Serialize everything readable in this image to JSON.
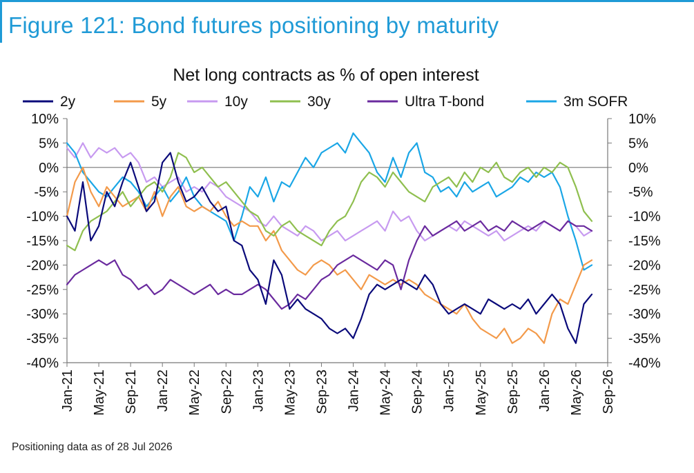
{
  "figure_title": "Figure 121: Bond futures positioning by maturity",
  "footnote": "Positioning data as of 28 Jul 2026",
  "colors": {
    "accent": "#1f9ad6",
    "2y": "#0a0a7a",
    "5y": "#f39a4a",
    "10y": "#c79af0",
    "30y": "#8fbf4f",
    "ultra": "#6a2a9e",
    "sofr": "#1aa6e6"
  },
  "chart_data": {
    "type": "line",
    "title": "Net long contracts as % of open interest",
    "ylim": [
      -40,
      10
    ],
    "yticks": [
      "10%",
      "5%",
      "0%",
      "-5%",
      "-10%",
      "-15%",
      "-20%",
      "-25%",
      "-30%",
      "-35%",
      "-40%"
    ],
    "ytick_values": [
      10,
      5,
      0,
      -5,
      -10,
      -15,
      -20,
      -25,
      -30,
      -35,
      -40
    ],
    "xticks": [
      "Jan-21",
      "May-21",
      "Sep-21",
      "Jan-22",
      "May-22",
      "Sep-22",
      "Jan-23",
      "May-23",
      "Sep-23",
      "Jan-24",
      "May-24",
      "Sep-24",
      "Jan-25",
      "May-25",
      "Sep-25",
      "Jan-26",
      "May-26",
      "Sep-26"
    ],
    "xlim": [
      "Jan-21",
      "Sep-26"
    ],
    "legend_position": "top",
    "grid": false,
    "series": [
      {
        "name": "2y",
        "key": "2y",
        "dates": [
          "Jan-21",
          "Feb-21",
          "Mar-21",
          "Apr-21",
          "May-21",
          "Jun-21",
          "Jul-21",
          "Aug-21",
          "Sep-21",
          "Oct-21",
          "Nov-21",
          "Dec-21",
          "Jan-22",
          "Feb-22",
          "Mar-22",
          "Apr-22",
          "May-22",
          "Jun-22",
          "Jul-22",
          "Aug-22",
          "Sep-22",
          "Oct-22",
          "Nov-22",
          "Dec-22",
          "Jan-23",
          "Feb-23",
          "Mar-23",
          "Apr-23",
          "May-23",
          "Jun-23",
          "Jul-23",
          "Aug-23",
          "Sep-23",
          "Oct-23",
          "Nov-23",
          "Dec-23",
          "Jan-24",
          "Feb-24",
          "Mar-24",
          "Apr-24",
          "May-24",
          "Jun-24",
          "Jul-24",
          "Aug-24",
          "Sep-24",
          "Oct-24",
          "Nov-24",
          "Dec-24",
          "Jan-25",
          "Feb-25",
          "Mar-25",
          "Apr-25",
          "May-25",
          "Jun-25",
          "Jul-25",
          "Aug-25",
          "Sep-25",
          "Oct-25",
          "Nov-25",
          "Dec-25",
          "Jan-26",
          "Feb-26",
          "Mar-26",
          "Apr-26",
          "May-26",
          "Jun-26",
          "Jul-26"
        ],
        "values": [
          -10,
          -13,
          -3,
          -15,
          -12,
          -5,
          -8,
          -3,
          1,
          -4,
          -9,
          -7,
          1,
          3,
          -3,
          -7,
          -6,
          -4,
          -7,
          -9,
          -8,
          -15,
          -16,
          -21,
          -23,
          -28,
          -19,
          -22,
          -29,
          -27,
          -29,
          -30,
          -31,
          -33,
          -34,
          -33,
          -35,
          -31,
          -26,
          -24,
          -25,
          -24,
          -23,
          -24,
          -25,
          -22,
          -24,
          -28,
          -30,
          -29,
          -28,
          -29,
          -30,
          -27,
          -28,
          -29,
          -28,
          -29,
          -27,
          -30,
          -28,
          -26,
          -28,
          -33,
          -36,
          -28,
          -26
        ]
      },
      {
        "name": "5y",
        "key": "5y",
        "dates": [
          "Jan-21",
          "Feb-21",
          "Mar-21",
          "Apr-21",
          "May-21",
          "Jun-21",
          "Jul-21",
          "Aug-21",
          "Sep-21",
          "Oct-21",
          "Nov-21",
          "Dec-21",
          "Jan-22",
          "Feb-22",
          "Mar-22",
          "Apr-22",
          "May-22",
          "Jun-22",
          "Jul-22",
          "Aug-22",
          "Sep-22",
          "Oct-22",
          "Nov-22",
          "Dec-22",
          "Jan-23",
          "Feb-23",
          "Mar-23",
          "Apr-23",
          "May-23",
          "Jun-23",
          "Jul-23",
          "Aug-23",
          "Sep-23",
          "Oct-23",
          "Nov-23",
          "Dec-23",
          "Jan-24",
          "Feb-24",
          "Mar-24",
          "Apr-24",
          "May-24",
          "Jun-24",
          "Jul-24",
          "Aug-24",
          "Sep-24",
          "Oct-24",
          "Nov-24",
          "Dec-24",
          "Jan-25",
          "Feb-25",
          "Mar-25",
          "Apr-25",
          "May-25",
          "Jun-25",
          "Jul-25",
          "Aug-25",
          "Sep-25",
          "Oct-25",
          "Nov-25",
          "Dec-25",
          "Jan-26",
          "Feb-26",
          "Mar-26",
          "Apr-26",
          "May-26",
          "Jun-26",
          "Jul-26"
        ],
        "values": [
          -10,
          -3,
          0,
          -5,
          -8,
          -4,
          -6,
          -8,
          -7,
          -6,
          -9,
          -5,
          -10,
          -6,
          -4,
          -8,
          -9,
          -8,
          -9,
          -7,
          -10,
          -12,
          -11,
          -12,
          -12,
          -15,
          -13,
          -17,
          -19,
          -21,
          -22,
          -20,
          -19,
          -20,
          -22,
          -21,
          -23,
          -25,
          -22,
          -23,
          -24,
          -23,
          -24,
          -23,
          -24,
          -26,
          -27,
          -28,
          -29,
          -30,
          -28,
          -31,
          -33,
          -34,
          -35,
          -33,
          -36,
          -35,
          -33,
          -34,
          -36,
          -30,
          -27,
          -28,
          -24,
          -20,
          -19
        ]
      },
      {
        "name": "10y",
        "key": "10y",
        "dates": [
          "Jan-21",
          "Feb-21",
          "Mar-21",
          "Apr-21",
          "May-21",
          "Jun-21",
          "Jul-21",
          "Aug-21",
          "Sep-21",
          "Oct-21",
          "Nov-21",
          "Dec-21",
          "Jan-22",
          "Feb-22",
          "Mar-22",
          "Apr-22",
          "May-22",
          "Jun-22",
          "Jul-22",
          "Aug-22",
          "Sep-22",
          "Oct-22",
          "Nov-22",
          "Dec-22",
          "Jan-23",
          "Feb-23",
          "Mar-23",
          "Apr-23",
          "May-23",
          "Jun-23",
          "Jul-23",
          "Aug-23",
          "Sep-23",
          "Oct-23",
          "Nov-23",
          "Dec-23",
          "Jan-24",
          "Feb-24",
          "Mar-24",
          "Apr-24",
          "May-24",
          "Jun-24",
          "Jul-24",
          "Aug-24",
          "Sep-24",
          "Oct-24",
          "Nov-24",
          "Dec-24",
          "Jan-25",
          "Feb-25",
          "Mar-25",
          "Apr-25",
          "May-25",
          "Jun-25",
          "Jul-25",
          "Aug-25",
          "Sep-25",
          "Oct-25",
          "Nov-25",
          "Dec-25",
          "Jan-26",
          "Feb-26",
          "Mar-26",
          "Apr-26",
          "May-26",
          "Jun-26",
          "Jul-26"
        ],
        "values": [
          4,
          2,
          5,
          2,
          4,
          3,
          4,
          2,
          3,
          1,
          -3,
          -2,
          -4,
          -3,
          -2,
          -5,
          -4,
          -5,
          -3,
          -4,
          -6,
          -7,
          -8,
          -9,
          -11,
          -12,
          -10,
          -12,
          -13,
          -14,
          -12,
          -13,
          -15,
          -14,
          -13,
          -15,
          -14,
          -13,
          -12,
          -11,
          -13,
          -9,
          -11,
          -10,
          -13,
          -15,
          -14,
          -13,
          -12,
          -13,
          -11,
          -12,
          -13,
          -14,
          -13,
          -15,
          -14,
          -13,
          -12,
          -13,
          -11,
          -12,
          -13,
          -11,
          -12,
          -14,
          -13
        ]
      },
      {
        "name": "30y",
        "key": "30y",
        "dates": [
          "Jan-21",
          "Feb-21",
          "Mar-21",
          "Apr-21",
          "May-21",
          "Jun-21",
          "Jul-21",
          "Aug-21",
          "Sep-21",
          "Oct-21",
          "Nov-21",
          "Dec-21",
          "Jan-22",
          "Feb-22",
          "Mar-22",
          "Apr-22",
          "May-22",
          "Jun-22",
          "Jul-22",
          "Aug-22",
          "Sep-22",
          "Oct-22",
          "Nov-22",
          "Dec-22",
          "Jan-23",
          "Feb-23",
          "Mar-23",
          "Apr-23",
          "May-23",
          "Jun-23",
          "Jul-23",
          "Aug-23",
          "Sep-23",
          "Oct-23",
          "Nov-23",
          "Dec-23",
          "Jan-24",
          "Feb-24",
          "Mar-24",
          "Apr-24",
          "May-24",
          "Jun-24",
          "Jul-24",
          "Aug-24",
          "Sep-24",
          "Oct-24",
          "Nov-24",
          "Dec-24",
          "Jan-25",
          "Feb-25",
          "Mar-25",
          "Apr-25",
          "May-25",
          "Jun-25",
          "Jul-25",
          "Aug-25",
          "Sep-25",
          "Oct-25",
          "Nov-25",
          "Dec-25",
          "Jan-26",
          "Feb-26",
          "Mar-26",
          "Apr-26",
          "May-26",
          "Jun-26",
          "Jul-26"
        ],
        "values": [
          -16,
          -17,
          -13,
          -11,
          -10,
          -9,
          -7,
          -5,
          -8,
          -6,
          -4,
          -3,
          -5,
          -2,
          3,
          2,
          -1,
          0,
          -2,
          -4,
          -3,
          -5,
          -7,
          -9,
          -10,
          -13,
          -14,
          -12,
          -11,
          -13,
          -14,
          -15,
          -16,
          -13,
          -11,
          -10,
          -7,
          -3,
          -1,
          -2,
          -4,
          -1,
          -3,
          -5,
          -6,
          -7,
          -4,
          -3,
          -2,
          -4,
          -1,
          -3,
          0,
          -1,
          1,
          -2,
          -3,
          -1,
          0,
          -2,
          0,
          -1,
          1,
          0,
          -4,
          -9,
          -11
        ]
      },
      {
        "name": "Ultra T-bond",
        "key": "ultra",
        "dates": [
          "Jan-21",
          "Feb-21",
          "Mar-21",
          "Apr-21",
          "May-21",
          "Jun-21",
          "Jul-21",
          "Aug-21",
          "Sep-21",
          "Oct-21",
          "Nov-21",
          "Dec-21",
          "Jan-22",
          "Feb-22",
          "Mar-22",
          "Apr-22",
          "May-22",
          "Jun-22",
          "Jul-22",
          "Aug-22",
          "Sep-22",
          "Oct-22",
          "Nov-22",
          "Dec-22",
          "Jan-23",
          "Feb-23",
          "Mar-23",
          "Apr-23",
          "May-23",
          "Jun-23",
          "Jul-23",
          "Aug-23",
          "Sep-23",
          "Oct-23",
          "Nov-23",
          "Dec-23",
          "Jan-24",
          "Feb-24",
          "Mar-24",
          "Apr-24",
          "May-24",
          "Jun-24",
          "Jul-24",
          "Aug-24",
          "Sep-24",
          "Oct-24",
          "Nov-24",
          "Dec-24",
          "Jan-25",
          "Feb-25",
          "Mar-25",
          "Apr-25",
          "May-25",
          "Jun-25",
          "Jul-25",
          "Aug-25",
          "Sep-25",
          "Oct-25",
          "Nov-25",
          "Dec-25",
          "Jan-26",
          "Feb-26",
          "Mar-26",
          "Apr-26",
          "May-26",
          "Jun-26",
          "Jul-26"
        ],
        "values": [
          -24,
          -22,
          -21,
          -20,
          -19,
          -20,
          -19,
          -22,
          -23,
          -25,
          -24,
          -26,
          -25,
          -23,
          -24,
          -25,
          -26,
          -25,
          -24,
          -26,
          -25,
          -26,
          -26,
          -25,
          -24,
          -25,
          -27,
          -29,
          -28,
          -26,
          -27,
          -25,
          -23,
          -22,
          -20,
          -19,
          -18,
          -19,
          -20,
          -21,
          -19,
          -20,
          -25,
          -19,
          -15,
          -12,
          -14,
          -13,
          -12,
          -11,
          -13,
          -12,
          -11,
          -13,
          -12,
          -13,
          -11,
          -12,
          -13,
          -12,
          -11,
          -12,
          -13,
          -11,
          -12,
          -12,
          -13
        ]
      },
      {
        "name": "3m SOFR",
        "key": "sofr",
        "dates": [
          "Jan-21",
          "Feb-21",
          "Mar-21",
          "Apr-21",
          "May-21",
          "Jun-21",
          "Jul-21",
          "Aug-21",
          "Sep-21",
          "Oct-21",
          "Nov-21",
          "Dec-21",
          "Jan-22",
          "Feb-22",
          "Mar-22",
          "Apr-22",
          "May-22",
          "Jun-22",
          "Jul-22",
          "Aug-22",
          "Sep-22",
          "Oct-22",
          "Nov-22",
          "Dec-22",
          "Jan-23",
          "Feb-23",
          "Mar-23",
          "Apr-23",
          "May-23",
          "Jun-23",
          "Jul-23",
          "Aug-23",
          "Sep-23",
          "Oct-23",
          "Nov-23",
          "Dec-23",
          "Jan-24",
          "Feb-24",
          "Mar-24",
          "Apr-24",
          "May-24",
          "Jun-24",
          "Jul-24",
          "Aug-24",
          "Sep-24",
          "Oct-24",
          "Nov-24",
          "Dec-24",
          "Jan-25",
          "Feb-25",
          "Mar-25",
          "Apr-25",
          "May-25",
          "Jun-25",
          "Jul-25",
          "Aug-25",
          "Sep-25",
          "Oct-25",
          "Nov-25",
          "Dec-25",
          "Jan-26",
          "Feb-26",
          "Mar-26",
          "Apr-26",
          "May-26",
          "Jun-26",
          "Jul-26"
        ],
        "values": [
          5,
          3,
          -1,
          -3,
          -5,
          -6,
          -4,
          -2,
          -3,
          -5,
          -8,
          -6,
          -4,
          -7,
          -5,
          -2,
          -6,
          -8,
          -9,
          -10,
          -11,
          -15,
          -10,
          -4,
          -6,
          -2,
          -7,
          -3,
          -4,
          -1,
          2,
          0,
          3,
          4,
          5,
          3,
          7,
          5,
          3,
          -1,
          -3,
          2,
          -2,
          3,
          5,
          -1,
          -2,
          -5,
          -4,
          -6,
          -3,
          -5,
          -4,
          -3,
          -6,
          -5,
          -4,
          -2,
          -3,
          -1,
          -2,
          -1,
          -4,
          -10,
          -15,
          -21,
          -20
        ]
      }
    ]
  }
}
